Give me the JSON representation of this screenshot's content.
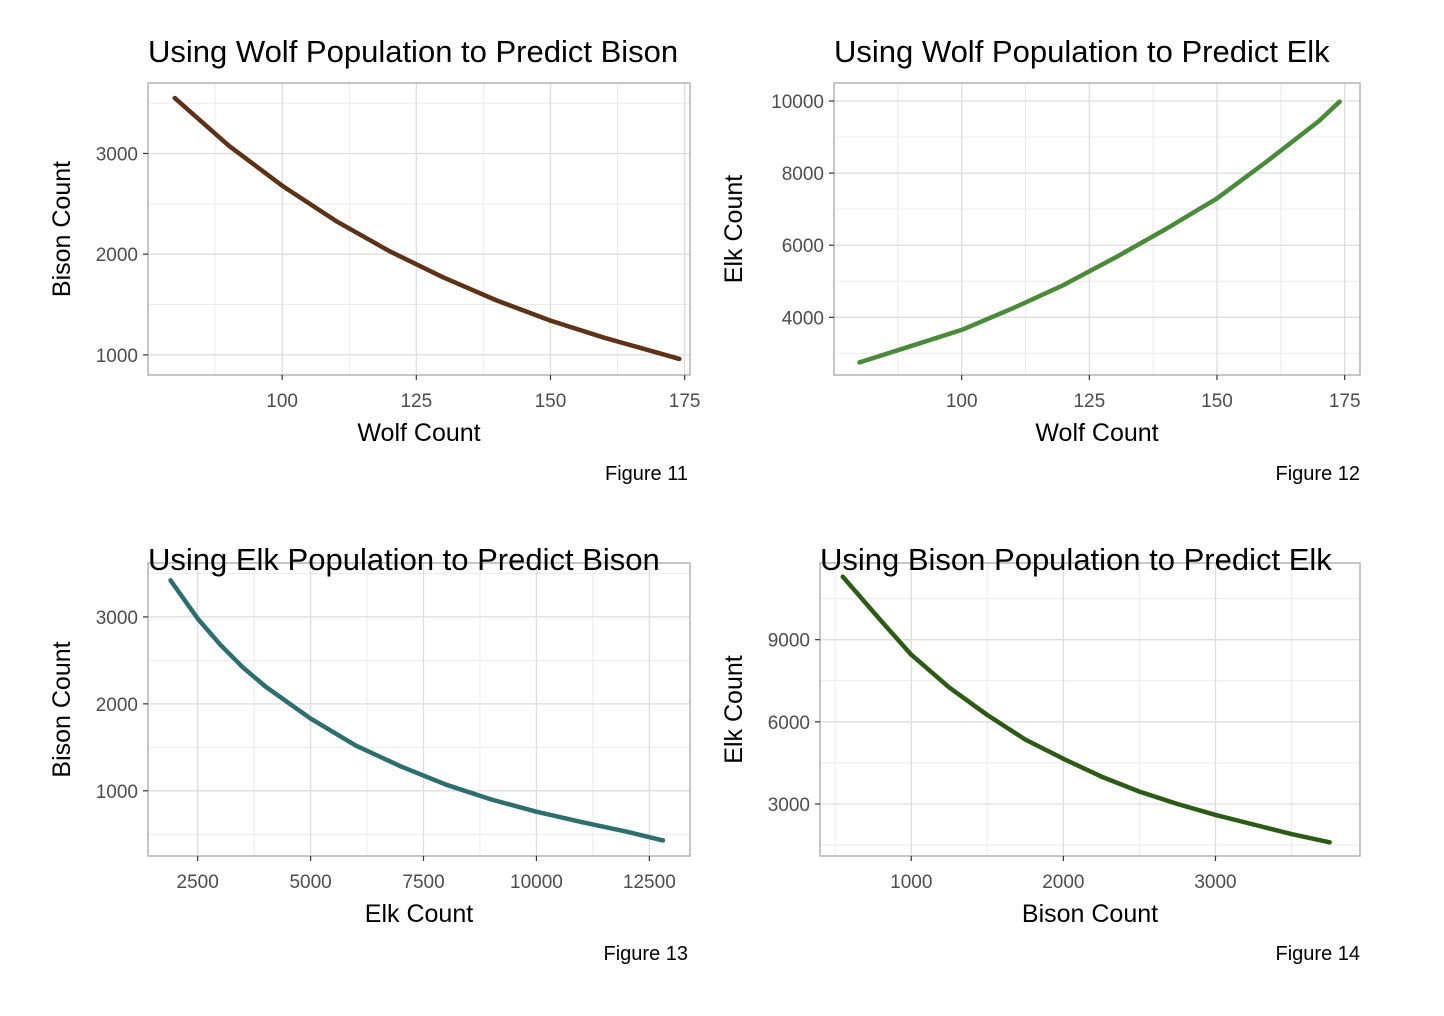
{
  "chart_data": [
    {
      "type": "line",
      "title": "Using Wolf Population to Predict Bison",
      "xlabel": "Wolf Count",
      "ylabel": "Bison Count",
      "caption": "Figure 11",
      "color": "#5c3317",
      "xlim": [
        75,
        176
      ],
      "ylim": [
        800,
        3700
      ],
      "xticks": [
        100,
        125,
        150,
        175
      ],
      "yticks": [
        1000,
        2000,
        3000
      ],
      "grid": true,
      "x": [
        80,
        90,
        100,
        110,
        120,
        130,
        140,
        150,
        160,
        170,
        174
      ],
      "y": [
        3550,
        3080,
        2680,
        2330,
        2030,
        1770,
        1540,
        1340,
        1170,
        1020,
        960
      ]
    },
    {
      "type": "line",
      "title": "Using Wolf Population to Predict Elk",
      "xlabel": "Wolf Count",
      "ylabel": "Elk Count",
      "caption": "Figure 12",
      "color": "#4a8a3a",
      "xlim": [
        75,
        178
      ],
      "ylim": [
        2400,
        10500
      ],
      "xticks": [
        100,
        125,
        150,
        175
      ],
      "yticks": [
        4000,
        6000,
        8000,
        10000
      ],
      "grid": true,
      "x": [
        80,
        90,
        100,
        110,
        120,
        130,
        140,
        150,
        160,
        170,
        174
      ],
      "y": [
        2750,
        3200,
        3650,
        4250,
        4900,
        5650,
        6450,
        7300,
        8350,
        9450,
        9980
      ]
    },
    {
      "type": "line",
      "title": "Using Elk Population to Predict Bison",
      "xlabel": "Elk Count",
      "ylabel": "Bison Count",
      "caption": "Figure 13",
      "color": "#2e6e6e",
      "xlim": [
        1400,
        13400
      ],
      "ylim": [
        250,
        3620
      ],
      "xticks": [
        2500,
        5000,
        7500,
        10000,
        12500
      ],
      "yticks": [
        1000,
        2000,
        3000
      ],
      "grid": true,
      "x": [
        1900,
        2500,
        3000,
        3500,
        4000,
        5000,
        6000,
        7000,
        8000,
        9000,
        10000,
        11000,
        12000,
        12800
      ],
      "y": [
        3420,
        2980,
        2680,
        2420,
        2200,
        1830,
        1520,
        1280,
        1070,
        900,
        760,
        640,
        530,
        430
      ]
    },
    {
      "type": "line",
      "title": "Using Bison Population to Predict Elk",
      "xlabel": "Bison Count",
      "ylabel": "Elk Count",
      "caption": "Figure 14",
      "color": "#2d5a16",
      "xlim": [
        400,
        3950
      ],
      "ylim": [
        1100,
        11800
      ],
      "xticks": [
        1000,
        2000,
        3000
      ],
      "yticks": [
        3000,
        6000,
        9000
      ],
      "grid": true,
      "x": [
        550,
        800,
        1000,
        1250,
        1500,
        1750,
        2000,
        2250,
        2500,
        2750,
        3000,
        3250,
        3500,
        3750
      ],
      "y": [
        11300,
        9700,
        8450,
        7250,
        6250,
        5350,
        4650,
        4000,
        3450,
        3000,
        2600,
        2250,
        1900,
        1600
      ]
    }
  ]
}
